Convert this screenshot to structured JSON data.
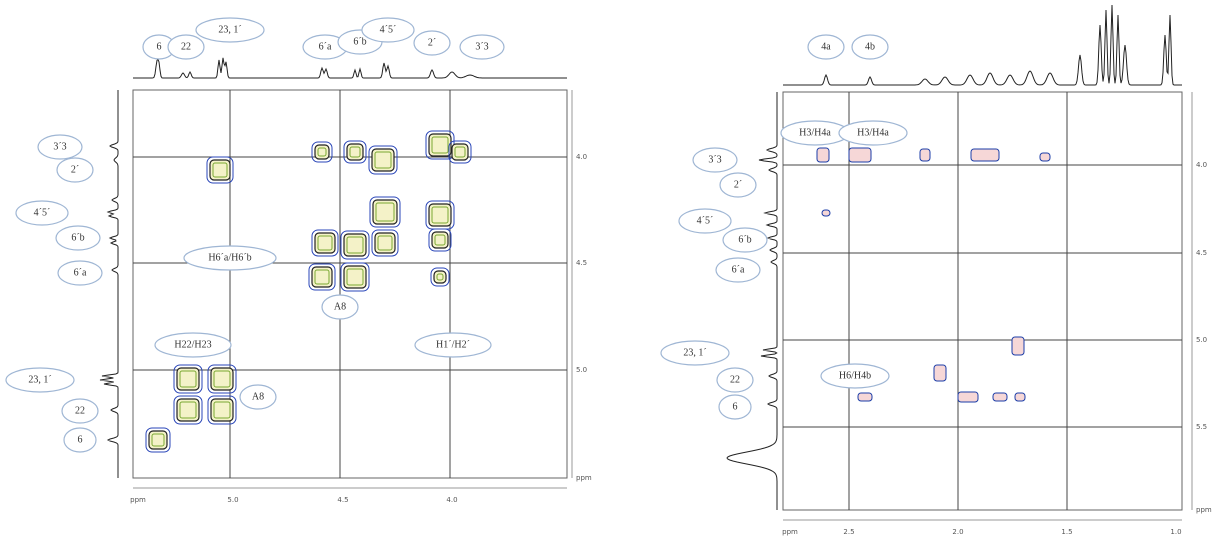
{
  "left_panel": {
    "top_labels": [
      "6",
      "22",
      "23, 1´",
      "6´a",
      "6´b",
      "4´5´",
      "2´",
      "3´3"
    ],
    "side_labels": [
      "3´3",
      "2´",
      "4´5´",
      "6´b",
      "6´a",
      "23, 1´",
      "22",
      "6"
    ],
    "peak_labels": [
      "H6´a/H6´b",
      "A8",
      "H22/H23",
      "A8",
      "H1´/H2´"
    ],
    "right_axis_ticks": [
      "4.0",
      "4.5",
      "5.0",
      "ppm"
    ],
    "bottom_axis_ticks": [
      "ppm",
      "5.0",
      "4.5",
      "4.0"
    ]
  },
  "right_panel": {
    "top_labels": [
      "4a",
      "4b"
    ],
    "side_labels": [
      "3´3",
      "2´",
      "4´5´",
      "6´b",
      "6´a",
      "23, 1´",
      "22",
      "6"
    ],
    "peak_labels": [
      "H3/H4a",
      "H3/H4a",
      "H6/H4b"
    ],
    "right_axis_ticks": [
      "4.0",
      "4.5",
      "5.0",
      "5.5",
      "ppm"
    ],
    "bottom_axis_ticks": [
      "ppm",
      "2.5",
      "2.0",
      "1.5",
      "1.0"
    ]
  }
}
